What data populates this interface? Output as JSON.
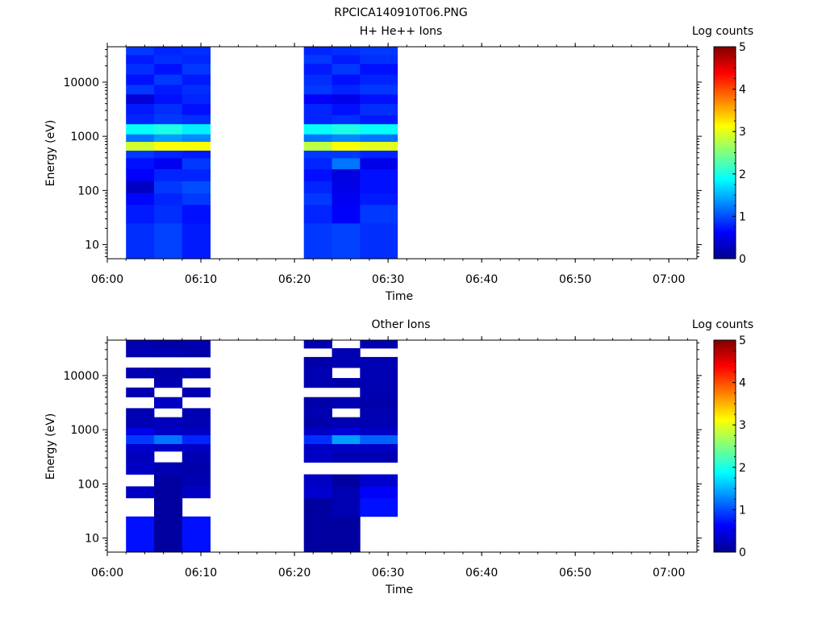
{
  "page_title": "RPCICA140910T06.PNG",
  "chart_data": [
    {
      "type": "heatmap",
      "title": "H+ He++ Ions",
      "xlabel": "Time",
      "ylabel": "Energy (eV)",
      "y_scale": "log",
      "ylim": [
        5.5,
        45000
      ],
      "xlim": [
        "06:00",
        "07:03"
      ],
      "x_ticks": [
        "06:00",
        "06:10",
        "06:20",
        "06:30",
        "06:40",
        "06:50",
        "07:00"
      ],
      "y_ticks": [
        "10",
        "100",
        "1000",
        "10000"
      ],
      "colorbar": {
        "label": "Log counts",
        "range": [
          0,
          5
        ],
        "ticks": [
          "0",
          "1",
          "2",
          "3",
          "4",
          "5"
        ],
        "colors": [
          "#00008f",
          "#0000ff",
          "#00ffff",
          "#ffff00",
          "#ff0000",
          "#800000"
        ]
      },
      "time_columns": [
        {
          "start": "06:02",
          "end": "06:05"
        },
        {
          "start": "06:05",
          "end": "06:08"
        },
        {
          "start": "06:08",
          "end": "06:11"
        },
        {
          "start": "06:21",
          "end": "06:24"
        },
        {
          "start": "06:24",
          "end": "06:27"
        },
        {
          "start": "06:27",
          "end": "06:31"
        }
      ],
      "energy_bins": [
        {
          "low": 5.5,
          "high": 25,
          "values": [
            0.85,
            0.95,
            0.75,
            0.9,
            0.95,
            0.85
          ]
        },
        {
          "low": 25,
          "high": 55,
          "values": [
            0.75,
            0.85,
            0.7,
            0.8,
            0.6,
            0.9
          ]
        },
        {
          "low": 55,
          "high": 90,
          "values": [
            0.65,
            0.8,
            0.9,
            0.9,
            0.55,
            0.75
          ]
        },
        {
          "low": 90,
          "high": 150,
          "values": [
            0.3,
            0.9,
            1.0,
            0.8,
            0.5,
            0.7
          ]
        },
        {
          "low": 150,
          "high": 250,
          "values": [
            0.6,
            0.8,
            0.8,
            0.7,
            0.45,
            0.7
          ]
        },
        {
          "low": 250,
          "high": 400,
          "values": [
            0.7,
            0.55,
            0.9,
            0.8,
            1.2,
            0.5
          ]
        },
        {
          "low": 400,
          "high": 550,
          "values": [
            0.9,
            0.8,
            0.75,
            0.9,
            0.9,
            0.8
          ]
        },
        {
          "low": 550,
          "high": 800,
          "values": [
            2.9,
            3.1,
            3.1,
            2.8,
            3.1,
            3.0
          ]
        },
        {
          "low": 800,
          "high": 1100,
          "values": [
            1.2,
            1.4,
            1.3,
            1.2,
            1.3,
            1.2
          ]
        },
        {
          "low": 1100,
          "high": 1700,
          "values": [
            1.9,
            2.0,
            1.8,
            1.9,
            2.0,
            1.9
          ]
        },
        {
          "low": 1700,
          "high": 2500,
          "values": [
            0.8,
            0.9,
            0.85,
            0.8,
            0.85,
            0.75
          ]
        },
        {
          "low": 2500,
          "high": 4000,
          "values": [
            0.75,
            0.85,
            0.7,
            0.8,
            0.7,
            0.85
          ]
        },
        {
          "low": 4000,
          "high": 6000,
          "values": [
            0.4,
            0.7,
            0.8,
            0.6,
            0.5,
            0.7
          ]
        },
        {
          "low": 6000,
          "high": 9000,
          "values": [
            0.9,
            0.75,
            0.85,
            0.9,
            0.8,
            0.9
          ]
        },
        {
          "low": 9000,
          "high": 14000,
          "values": [
            0.7,
            0.9,
            0.75,
            0.85,
            0.7,
            0.8
          ]
        },
        {
          "low": 14000,
          "high": 22000,
          "values": [
            0.85,
            0.7,
            0.9,
            0.75,
            0.9,
            0.7
          ]
        },
        {
          "low": 22000,
          "high": 32000,
          "values": [
            0.75,
            0.85,
            0.8,
            0.9,
            0.75,
            0.85
          ]
        },
        {
          "low": 32000,
          "high": 45000,
          "values": [
            0.9,
            0.8,
            0.85,
            0.8,
            0.85,
            0.9
          ]
        }
      ]
    },
    {
      "type": "heatmap",
      "title": "Other Ions",
      "xlabel": "Time",
      "ylabel": "Energy (eV)",
      "y_scale": "log",
      "ylim": [
        5.5,
        45000
      ],
      "xlim": [
        "06:00",
        "07:03"
      ],
      "x_ticks": [
        "06:00",
        "06:10",
        "06:20",
        "06:30",
        "06:40",
        "06:50",
        "07:00"
      ],
      "y_ticks": [
        "10",
        "100",
        "1000",
        "10000"
      ],
      "colorbar": {
        "label": "Log counts",
        "range": [
          0,
          5
        ],
        "ticks": [
          "0",
          "1",
          "2",
          "3",
          "4",
          "5"
        ],
        "colors": [
          "#00008f",
          "#0000ff",
          "#00ffff",
          "#ffff00",
          "#ff0000",
          "#800000"
        ]
      },
      "time_columns": [
        {
          "start": "06:02",
          "end": "06:05"
        },
        {
          "start": "06:05",
          "end": "06:08"
        },
        {
          "start": "06:08",
          "end": "06:11"
        },
        {
          "start": "06:21",
          "end": "06:24"
        },
        {
          "start": "06:24",
          "end": "06:27"
        },
        {
          "start": "06:27",
          "end": "06:31"
        }
      ],
      "energy_bins": [
        {
          "low": 5.5,
          "high": 25,
          "values": [
            0.7,
            0.1,
            0.7,
            0.1,
            0.1,
            null
          ]
        },
        {
          "low": 25,
          "high": 55,
          "values": [
            null,
            0.1,
            null,
            0.1,
            0.2,
            0.7
          ]
        },
        {
          "low": 55,
          "high": 90,
          "values": [
            0.3,
            0.1,
            0.3,
            0.35,
            0.2,
            0.6
          ]
        },
        {
          "low": 90,
          "high": 150,
          "values": [
            null,
            0.1,
            0.2,
            0.3,
            0.1,
            0.35
          ]
        },
        {
          "low": 150,
          "high": 250,
          "values": [
            0.3,
            0.2,
            0.15,
            null,
            null,
            null
          ]
        },
        {
          "low": 250,
          "high": 400,
          "values": [
            0.25,
            null,
            0.2,
            0.3,
            0.2,
            0.2
          ]
        },
        {
          "low": 400,
          "high": 550,
          "values": [
            0.35,
            0.3,
            0.3,
            0.3,
            0.3,
            0.3
          ]
        },
        {
          "low": 550,
          "high": 800,
          "values": [
            0.9,
            1.2,
            0.8,
            0.85,
            1.4,
            1.1
          ]
        },
        {
          "low": 800,
          "high": 1100,
          "values": [
            0.5,
            0.3,
            0.3,
            0.3,
            0.4,
            0.3
          ]
        },
        {
          "low": 1100,
          "high": 1700,
          "values": [
            0.2,
            0.25,
            0.2,
            0.15,
            0.2,
            0.2
          ]
        },
        {
          "low": 1700,
          "high": 2500,
          "values": [
            0.2,
            null,
            0.2,
            0.2,
            null,
            0.2
          ]
        },
        {
          "low": 2500,
          "high": 4000,
          "values": [
            null,
            0.3,
            null,
            0.15,
            0.2,
            0.15
          ]
        },
        {
          "low": 4000,
          "high": 6000,
          "values": [
            0.2,
            null,
            0.2,
            null,
            null,
            0.2
          ]
        },
        {
          "low": 6000,
          "high": 9000,
          "values": [
            null,
            0.2,
            null,
            0.2,
            0.15,
            0.2
          ]
        },
        {
          "low": 9000,
          "high": 14000,
          "values": [
            0.2,
            0.15,
            0.2,
            0.2,
            null,
            0.2
          ]
        },
        {
          "low": 14000,
          "high": 22000,
          "values": [
            null,
            null,
            null,
            0.15,
            0.2,
            0.2
          ]
        },
        {
          "low": 22000,
          "high": 32000,
          "values": [
            0.2,
            0.2,
            0.15,
            null,
            0.2,
            null
          ]
        },
        {
          "low": 32000,
          "high": 45000,
          "values": [
            0.2,
            0.15,
            0.2,
            0.2,
            null,
            0.2
          ]
        }
      ]
    }
  ]
}
